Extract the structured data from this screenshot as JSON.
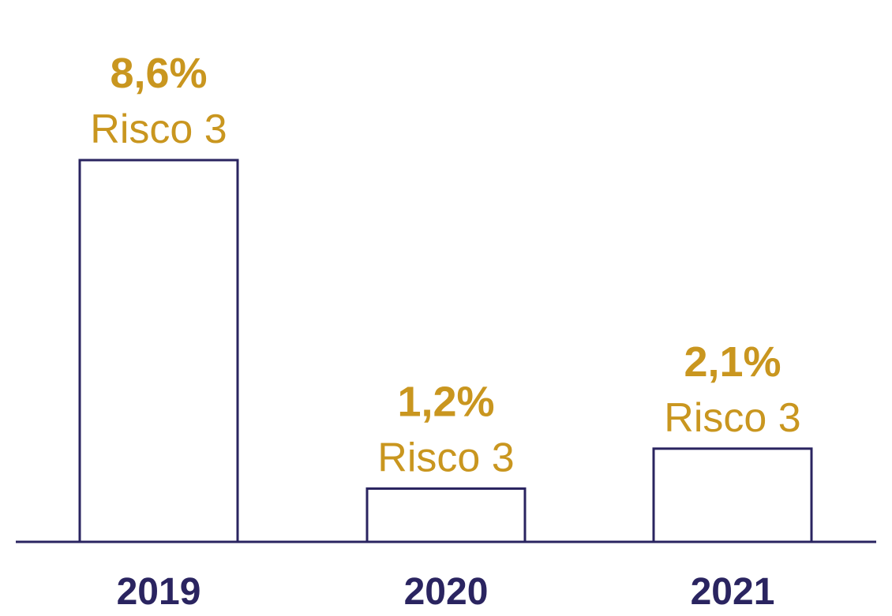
{
  "chart_data": {
    "type": "bar",
    "categories": [
      "2019",
      "2020",
      "2021"
    ],
    "values": [
      8.6,
      1.2,
      2.1
    ],
    "value_labels": [
      "8,6%",
      "1,2%",
      "2,1%"
    ],
    "sub_labels": [
      "Risco 3",
      "Risco 3",
      "Risco 3"
    ],
    "ylim": [
      0,
      8.6
    ],
    "grid": false,
    "legend": "none",
    "colors": {
      "bar_outline": "#2a2460",
      "bar_fill": "#ffffff",
      "axis": "#2a2460",
      "value_text": "#c9961f",
      "category_text": "#2a2460"
    }
  }
}
